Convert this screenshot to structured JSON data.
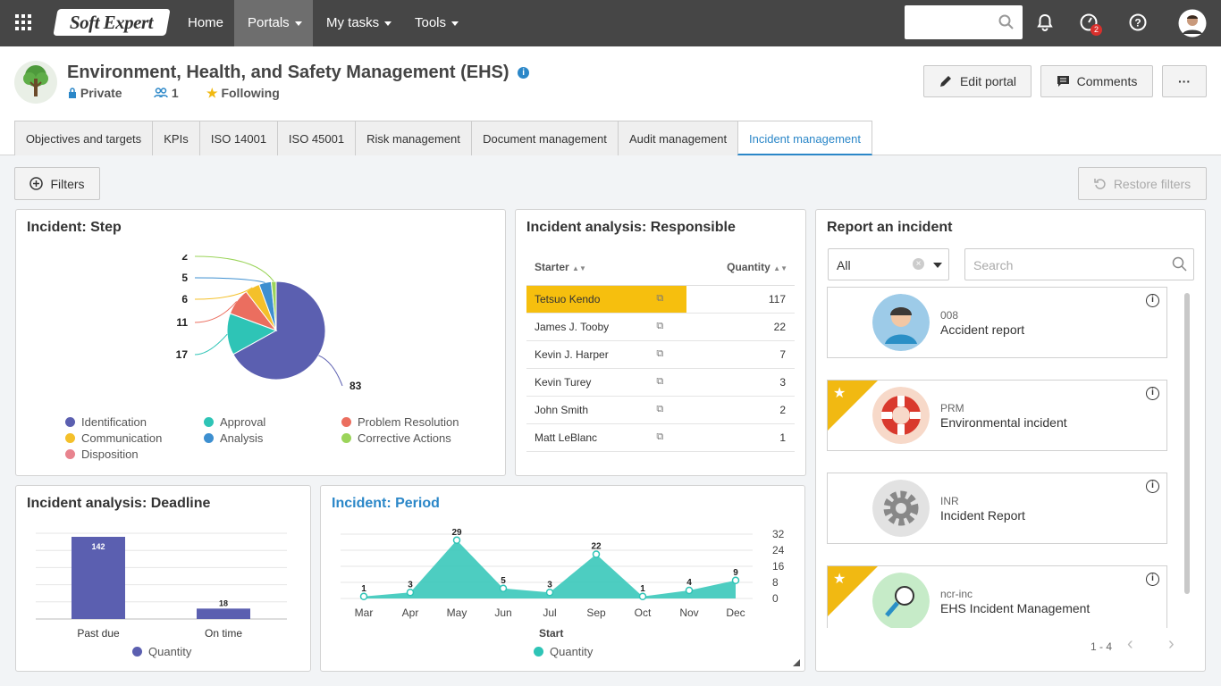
{
  "topbar": {
    "brand": "Soft Expert",
    "nav": [
      "Home",
      "Portals",
      "My tasks",
      "Tools"
    ],
    "notif_badge": "2"
  },
  "header": {
    "title": "Environment, Health, and Safety Management (EHS)",
    "privacy": "Private",
    "members": "1",
    "following": "Following",
    "buttons": {
      "edit": "Edit portal",
      "comments": "Comments",
      "more": "···"
    }
  },
  "tabs": [
    "Objectives and targets",
    "KPIs",
    "ISO 14001",
    "ISO 45001",
    "Risk management",
    "Document management",
    "Audit management",
    "Incident management"
  ],
  "toolbar": {
    "filters": "Filters",
    "restore": "Restore filters"
  },
  "step_panel": {
    "title": "Incident: Step"
  },
  "responsible_panel": {
    "title": "Incident analysis: Responsible",
    "col_starter": "Starter",
    "col_quantity": "Quantity",
    "rows": [
      {
        "name": "Tetsuo Kendo",
        "qty": "117"
      },
      {
        "name": "James J. Tooby",
        "qty": "22"
      },
      {
        "name": "Kevin J. Harper",
        "qty": "7"
      },
      {
        "name": "Kevin Turey",
        "qty": "3"
      },
      {
        "name": "John Smith",
        "qty": "2"
      },
      {
        "name": "Matt LeBlanc",
        "qty": "1"
      }
    ]
  },
  "deadline_panel": {
    "title": "Incident analysis: Deadline"
  },
  "period_panel": {
    "title": "Incident: Period"
  },
  "report_panel": {
    "title": "Report an incident",
    "filter_value": "All",
    "search_placeholder": "Search",
    "pagination": "1 - 4",
    "cards": [
      {
        "code": "008",
        "name": "Accident report"
      },
      {
        "code": "PRM",
        "name": "Environmental incident"
      },
      {
        "code": "INR",
        "name": "Incident Report"
      },
      {
        "code": "ncr-inc",
        "name": "EHS Incident Management"
      }
    ]
  },
  "colors": {
    "identification": "#5b5fb0",
    "approval": "#2ec4b6",
    "problem_resolution": "#eb6e5f",
    "communication": "#f4c02a",
    "analysis": "#3d8fd0",
    "corrective": "#9bd45a",
    "disposition": "#e8838e",
    "accent": "#2b87c8",
    "highlight": "#f6bf0e"
  },
  "chart_data": [
    {
      "type": "pie",
      "title": "Incident: Step",
      "categories": [
        "Identification",
        "Approval",
        "Problem Resolution",
        "Communication",
        "Analysis",
        "Corrective Actions",
        "Disposition"
      ],
      "values": [
        83,
        17,
        11,
        6,
        5,
        2,
        0
      ],
      "legend": "bottom"
    },
    {
      "type": "bar",
      "title": "Incident analysis: Deadline",
      "categories": [
        "Past due",
        "On time"
      ],
      "series": [
        {
          "name": "Quantity",
          "values": [
            142,
            18
          ]
        }
      ],
      "legend": "bottom"
    },
    {
      "type": "area",
      "title": "Incident: Period",
      "xlabel": "Start",
      "categories": [
        "Mar",
        "Apr",
        "May",
        "Jun",
        "Jul",
        "Sep",
        "Oct",
        "Nov",
        "Dec"
      ],
      "series": [
        {
          "name": "Quantity",
          "values": [
            1,
            3,
            29,
            5,
            3,
            22,
            1,
            4,
            9
          ]
        }
      ],
      "ylim": [
        0,
        32
      ],
      "yticks": [
        "32",
        "24",
        "16",
        "8",
        "0"
      ],
      "legend": "bottom"
    }
  ]
}
